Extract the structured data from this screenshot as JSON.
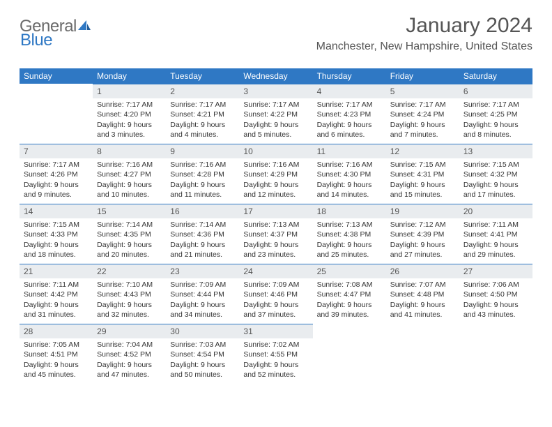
{
  "logo": {
    "word1": "General",
    "word2": "Blue"
  },
  "title": "January 2024",
  "location": "Manchester, New Hampshire, United States",
  "background_color": "#ffffff",
  "header_bg": "#2f78c4",
  "header_text_color": "#ffffff",
  "daynum_bg": "#e9ecef",
  "cell_border_color": "#2f78c4",
  "body_text_color": "#333333",
  "title_color": "#555555",
  "logo_gray": "#6b6b6b",
  "logo_blue": "#2f78c4",
  "day_headers": [
    "Sunday",
    "Monday",
    "Tuesday",
    "Wednesday",
    "Thursday",
    "Friday",
    "Saturday"
  ],
  "start_weekday": 1,
  "days": [
    {
      "n": 1,
      "sr": "7:17 AM",
      "ss": "4:20 PM",
      "dl": "9 hours and 3 minutes."
    },
    {
      "n": 2,
      "sr": "7:17 AM",
      "ss": "4:21 PM",
      "dl": "9 hours and 4 minutes."
    },
    {
      "n": 3,
      "sr": "7:17 AM",
      "ss": "4:22 PM",
      "dl": "9 hours and 5 minutes."
    },
    {
      "n": 4,
      "sr": "7:17 AM",
      "ss": "4:23 PM",
      "dl": "9 hours and 6 minutes."
    },
    {
      "n": 5,
      "sr": "7:17 AM",
      "ss": "4:24 PM",
      "dl": "9 hours and 7 minutes."
    },
    {
      "n": 6,
      "sr": "7:17 AM",
      "ss": "4:25 PM",
      "dl": "9 hours and 8 minutes."
    },
    {
      "n": 7,
      "sr": "7:17 AM",
      "ss": "4:26 PM",
      "dl": "9 hours and 9 minutes."
    },
    {
      "n": 8,
      "sr": "7:16 AM",
      "ss": "4:27 PM",
      "dl": "9 hours and 10 minutes."
    },
    {
      "n": 9,
      "sr": "7:16 AM",
      "ss": "4:28 PM",
      "dl": "9 hours and 11 minutes."
    },
    {
      "n": 10,
      "sr": "7:16 AM",
      "ss": "4:29 PM",
      "dl": "9 hours and 12 minutes."
    },
    {
      "n": 11,
      "sr": "7:16 AM",
      "ss": "4:30 PM",
      "dl": "9 hours and 14 minutes."
    },
    {
      "n": 12,
      "sr": "7:15 AM",
      "ss": "4:31 PM",
      "dl": "9 hours and 15 minutes."
    },
    {
      "n": 13,
      "sr": "7:15 AM",
      "ss": "4:32 PM",
      "dl": "9 hours and 17 minutes."
    },
    {
      "n": 14,
      "sr": "7:15 AM",
      "ss": "4:33 PM",
      "dl": "9 hours and 18 minutes."
    },
    {
      "n": 15,
      "sr": "7:14 AM",
      "ss": "4:35 PM",
      "dl": "9 hours and 20 minutes."
    },
    {
      "n": 16,
      "sr": "7:14 AM",
      "ss": "4:36 PM",
      "dl": "9 hours and 21 minutes."
    },
    {
      "n": 17,
      "sr": "7:13 AM",
      "ss": "4:37 PM",
      "dl": "9 hours and 23 minutes."
    },
    {
      "n": 18,
      "sr": "7:13 AM",
      "ss": "4:38 PM",
      "dl": "9 hours and 25 minutes."
    },
    {
      "n": 19,
      "sr": "7:12 AM",
      "ss": "4:39 PM",
      "dl": "9 hours and 27 minutes."
    },
    {
      "n": 20,
      "sr": "7:11 AM",
      "ss": "4:41 PM",
      "dl": "9 hours and 29 minutes."
    },
    {
      "n": 21,
      "sr": "7:11 AM",
      "ss": "4:42 PM",
      "dl": "9 hours and 31 minutes."
    },
    {
      "n": 22,
      "sr": "7:10 AM",
      "ss": "4:43 PM",
      "dl": "9 hours and 32 minutes."
    },
    {
      "n": 23,
      "sr": "7:09 AM",
      "ss": "4:44 PM",
      "dl": "9 hours and 34 minutes."
    },
    {
      "n": 24,
      "sr": "7:09 AM",
      "ss": "4:46 PM",
      "dl": "9 hours and 37 minutes."
    },
    {
      "n": 25,
      "sr": "7:08 AM",
      "ss": "4:47 PM",
      "dl": "9 hours and 39 minutes."
    },
    {
      "n": 26,
      "sr": "7:07 AM",
      "ss": "4:48 PM",
      "dl": "9 hours and 41 minutes."
    },
    {
      "n": 27,
      "sr": "7:06 AM",
      "ss": "4:50 PM",
      "dl": "9 hours and 43 minutes."
    },
    {
      "n": 28,
      "sr": "7:05 AM",
      "ss": "4:51 PM",
      "dl": "9 hours and 45 minutes."
    },
    {
      "n": 29,
      "sr": "7:04 AM",
      "ss": "4:52 PM",
      "dl": "9 hours and 47 minutes."
    },
    {
      "n": 30,
      "sr": "7:03 AM",
      "ss": "4:54 PM",
      "dl": "9 hours and 50 minutes."
    },
    {
      "n": 31,
      "sr": "7:02 AM",
      "ss": "4:55 PM",
      "dl": "9 hours and 52 minutes."
    }
  ],
  "labels": {
    "sunrise": "Sunrise:",
    "sunset": "Sunset:",
    "daylight": "Daylight:"
  }
}
